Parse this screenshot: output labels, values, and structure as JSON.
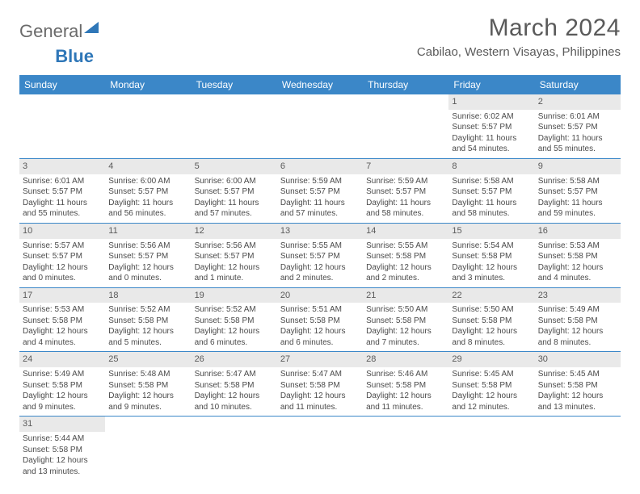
{
  "logo": {
    "text1": "General",
    "text2": "Blue"
  },
  "title": "March 2024",
  "location": "Cabilao, Western Visayas, Philippines",
  "colors": {
    "header_bg": "#3b87c8",
    "header_text": "#ffffff",
    "daynum_bg": "#e9e9e9",
    "text": "#5a5a5a",
    "row_border": "#3b87c8"
  },
  "weekdays": [
    "Sunday",
    "Monday",
    "Tuesday",
    "Wednesday",
    "Thursday",
    "Friday",
    "Saturday"
  ],
  "weeks": [
    [
      {
        "n": "",
        "sr": "",
        "ss": "",
        "dl": ""
      },
      {
        "n": "",
        "sr": "",
        "ss": "",
        "dl": ""
      },
      {
        "n": "",
        "sr": "",
        "ss": "",
        "dl": ""
      },
      {
        "n": "",
        "sr": "",
        "ss": "",
        "dl": ""
      },
      {
        "n": "",
        "sr": "",
        "ss": "",
        "dl": ""
      },
      {
        "n": "1",
        "sr": "Sunrise: 6:02 AM",
        "ss": "Sunset: 5:57 PM",
        "dl": "Daylight: 11 hours and 54 minutes."
      },
      {
        "n": "2",
        "sr": "Sunrise: 6:01 AM",
        "ss": "Sunset: 5:57 PM",
        "dl": "Daylight: 11 hours and 55 minutes."
      }
    ],
    [
      {
        "n": "3",
        "sr": "Sunrise: 6:01 AM",
        "ss": "Sunset: 5:57 PM",
        "dl": "Daylight: 11 hours and 55 minutes."
      },
      {
        "n": "4",
        "sr": "Sunrise: 6:00 AM",
        "ss": "Sunset: 5:57 PM",
        "dl": "Daylight: 11 hours and 56 minutes."
      },
      {
        "n": "5",
        "sr": "Sunrise: 6:00 AM",
        "ss": "Sunset: 5:57 PM",
        "dl": "Daylight: 11 hours and 57 minutes."
      },
      {
        "n": "6",
        "sr": "Sunrise: 5:59 AM",
        "ss": "Sunset: 5:57 PM",
        "dl": "Daylight: 11 hours and 57 minutes."
      },
      {
        "n": "7",
        "sr": "Sunrise: 5:59 AM",
        "ss": "Sunset: 5:57 PM",
        "dl": "Daylight: 11 hours and 58 minutes."
      },
      {
        "n": "8",
        "sr": "Sunrise: 5:58 AM",
        "ss": "Sunset: 5:57 PM",
        "dl": "Daylight: 11 hours and 58 minutes."
      },
      {
        "n": "9",
        "sr": "Sunrise: 5:58 AM",
        "ss": "Sunset: 5:57 PM",
        "dl": "Daylight: 11 hours and 59 minutes."
      }
    ],
    [
      {
        "n": "10",
        "sr": "Sunrise: 5:57 AM",
        "ss": "Sunset: 5:57 PM",
        "dl": "Daylight: 12 hours and 0 minutes."
      },
      {
        "n": "11",
        "sr": "Sunrise: 5:56 AM",
        "ss": "Sunset: 5:57 PM",
        "dl": "Daylight: 12 hours and 0 minutes."
      },
      {
        "n": "12",
        "sr": "Sunrise: 5:56 AM",
        "ss": "Sunset: 5:57 PM",
        "dl": "Daylight: 12 hours and 1 minute."
      },
      {
        "n": "13",
        "sr": "Sunrise: 5:55 AM",
        "ss": "Sunset: 5:57 PM",
        "dl": "Daylight: 12 hours and 2 minutes."
      },
      {
        "n": "14",
        "sr": "Sunrise: 5:55 AM",
        "ss": "Sunset: 5:58 PM",
        "dl": "Daylight: 12 hours and 2 minutes."
      },
      {
        "n": "15",
        "sr": "Sunrise: 5:54 AM",
        "ss": "Sunset: 5:58 PM",
        "dl": "Daylight: 12 hours and 3 minutes."
      },
      {
        "n": "16",
        "sr": "Sunrise: 5:53 AM",
        "ss": "Sunset: 5:58 PM",
        "dl": "Daylight: 12 hours and 4 minutes."
      }
    ],
    [
      {
        "n": "17",
        "sr": "Sunrise: 5:53 AM",
        "ss": "Sunset: 5:58 PM",
        "dl": "Daylight: 12 hours and 4 minutes."
      },
      {
        "n": "18",
        "sr": "Sunrise: 5:52 AM",
        "ss": "Sunset: 5:58 PM",
        "dl": "Daylight: 12 hours and 5 minutes."
      },
      {
        "n": "19",
        "sr": "Sunrise: 5:52 AM",
        "ss": "Sunset: 5:58 PM",
        "dl": "Daylight: 12 hours and 6 minutes."
      },
      {
        "n": "20",
        "sr": "Sunrise: 5:51 AM",
        "ss": "Sunset: 5:58 PM",
        "dl": "Daylight: 12 hours and 6 minutes."
      },
      {
        "n": "21",
        "sr": "Sunrise: 5:50 AM",
        "ss": "Sunset: 5:58 PM",
        "dl": "Daylight: 12 hours and 7 minutes."
      },
      {
        "n": "22",
        "sr": "Sunrise: 5:50 AM",
        "ss": "Sunset: 5:58 PM",
        "dl": "Daylight: 12 hours and 8 minutes."
      },
      {
        "n": "23",
        "sr": "Sunrise: 5:49 AM",
        "ss": "Sunset: 5:58 PM",
        "dl": "Daylight: 12 hours and 8 minutes."
      }
    ],
    [
      {
        "n": "24",
        "sr": "Sunrise: 5:49 AM",
        "ss": "Sunset: 5:58 PM",
        "dl": "Daylight: 12 hours and 9 minutes."
      },
      {
        "n": "25",
        "sr": "Sunrise: 5:48 AM",
        "ss": "Sunset: 5:58 PM",
        "dl": "Daylight: 12 hours and 9 minutes."
      },
      {
        "n": "26",
        "sr": "Sunrise: 5:47 AM",
        "ss": "Sunset: 5:58 PM",
        "dl": "Daylight: 12 hours and 10 minutes."
      },
      {
        "n": "27",
        "sr": "Sunrise: 5:47 AM",
        "ss": "Sunset: 5:58 PM",
        "dl": "Daylight: 12 hours and 11 minutes."
      },
      {
        "n": "28",
        "sr": "Sunrise: 5:46 AM",
        "ss": "Sunset: 5:58 PM",
        "dl": "Daylight: 12 hours and 11 minutes."
      },
      {
        "n": "29",
        "sr": "Sunrise: 5:45 AM",
        "ss": "Sunset: 5:58 PM",
        "dl": "Daylight: 12 hours and 12 minutes."
      },
      {
        "n": "30",
        "sr": "Sunrise: 5:45 AM",
        "ss": "Sunset: 5:58 PM",
        "dl": "Daylight: 12 hours and 13 minutes."
      }
    ],
    [
      {
        "n": "31",
        "sr": "Sunrise: 5:44 AM",
        "ss": "Sunset: 5:58 PM",
        "dl": "Daylight: 12 hours and 13 minutes."
      },
      {
        "n": "",
        "sr": "",
        "ss": "",
        "dl": ""
      },
      {
        "n": "",
        "sr": "",
        "ss": "",
        "dl": ""
      },
      {
        "n": "",
        "sr": "",
        "ss": "",
        "dl": ""
      },
      {
        "n": "",
        "sr": "",
        "ss": "",
        "dl": ""
      },
      {
        "n": "",
        "sr": "",
        "ss": "",
        "dl": ""
      },
      {
        "n": "",
        "sr": "",
        "ss": "",
        "dl": ""
      }
    ]
  ]
}
